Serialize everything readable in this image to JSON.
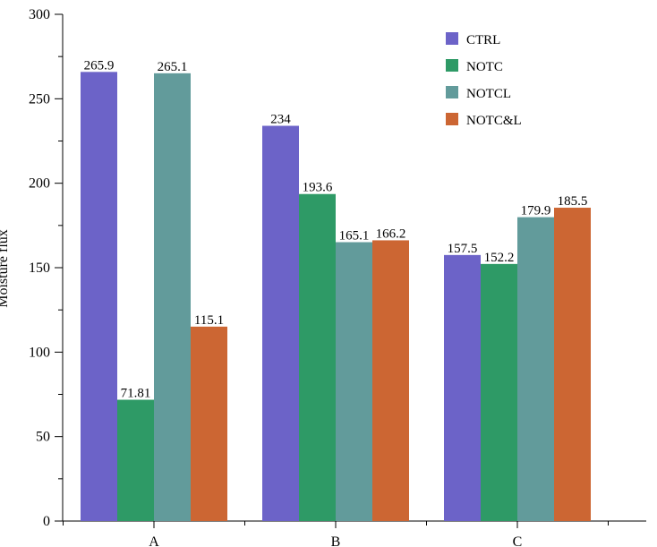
{
  "chart_data": {
    "type": "bar",
    "title": "",
    "xlabel": "",
    "ylabel": "Moisture flux",
    "categories": [
      "A",
      "B",
      "C"
    ],
    "series": [
      {
        "name": "CTRL",
        "color": "#6c63c8",
        "values": [
          265.9,
          234,
          157.5
        ],
        "labels": [
          "265.9",
          "234",
          "157.5"
        ]
      },
      {
        "name": "NOTC",
        "color": "#2e9a66",
        "values": [
          71.81,
          193.6,
          152.2
        ],
        "labels": [
          "71.81",
          "193.6",
          "152.2"
        ]
      },
      {
        "name": "NOTCL",
        "color": "#629b9b",
        "values": [
          265.1,
          165.1,
          179.9
        ],
        "labels": [
          "265.1",
          "165.1",
          "179.9"
        ]
      },
      {
        "name": "NOTC&L",
        "color": "#cc6633",
        "values": [
          115.1,
          166.2,
          185.5
        ],
        "labels": [
          "115.1",
          "166.2",
          "185.5"
        ]
      }
    ],
    "ylim": [
      0,
      300
    ],
    "yticks": [
      0,
      50,
      100,
      150,
      200,
      250,
      300
    ],
    "ytick_labels": [
      "0",
      "50",
      "100",
      "150",
      "200",
      "250",
      "300"
    ],
    "grid": false,
    "legend_position": "top-right"
  }
}
